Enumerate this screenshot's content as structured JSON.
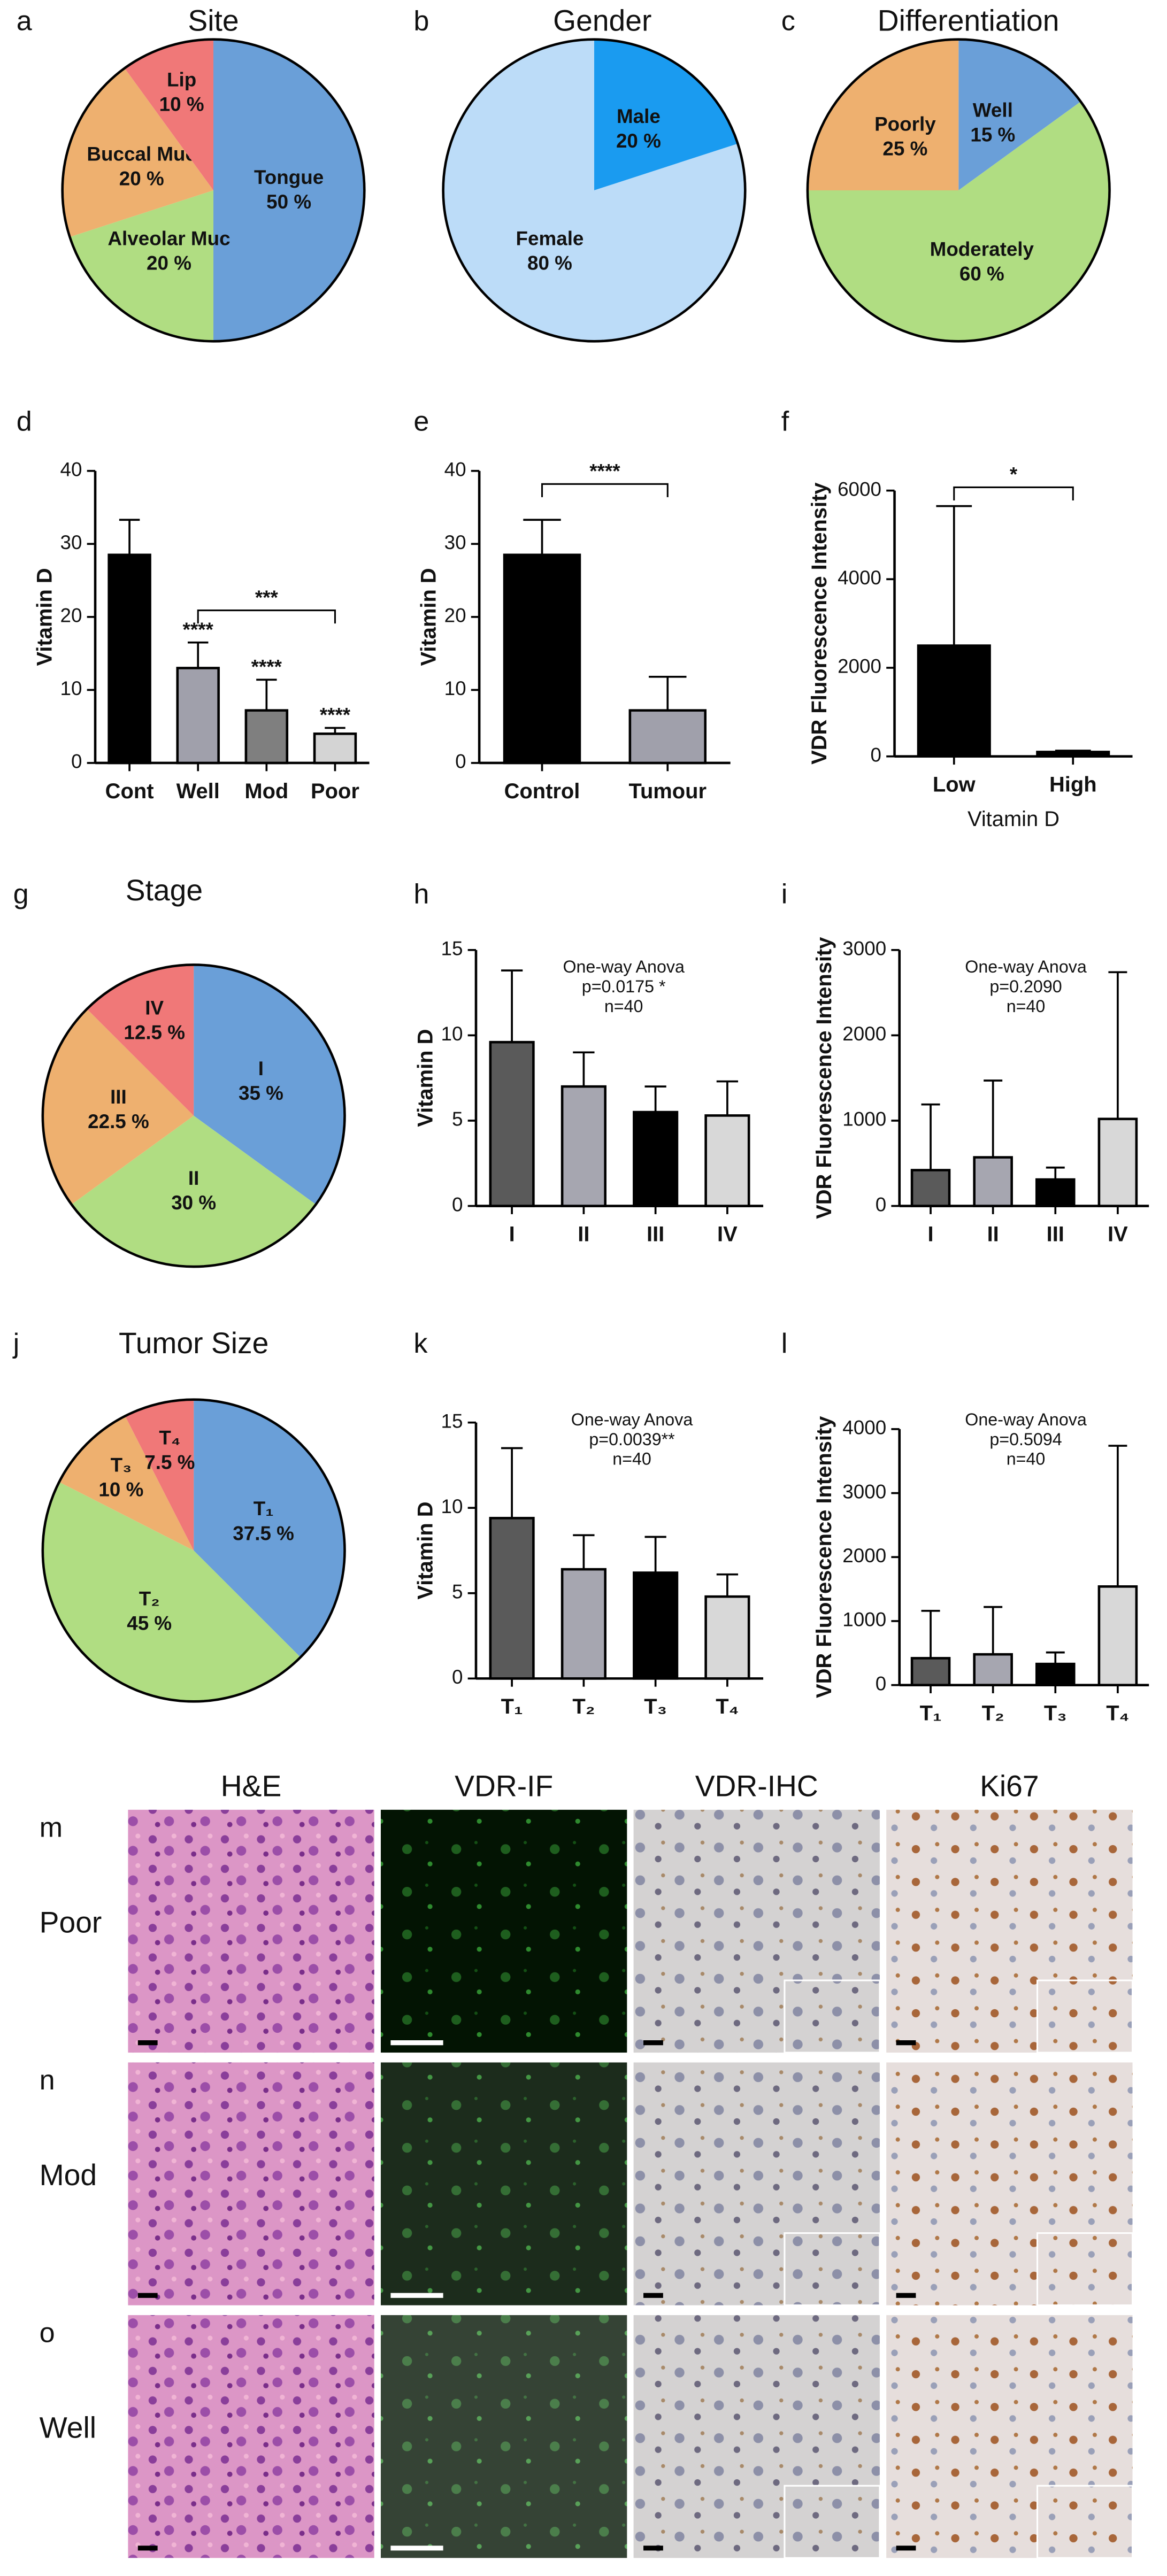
{
  "chart_data": [
    {
      "panel": "a",
      "type": "pie",
      "title": "Site",
      "categories": [
        "Tongue",
        "Alveolar Muc",
        "Buccal Muc",
        "Lip"
      ],
      "values": [
        50,
        20,
        20,
        10
      ],
      "value_labels": [
        "50 %",
        "20 %",
        "20 %",
        "10 %"
      ],
      "colors": [
        "#6a9fd8",
        "#b0dd82",
        "#eeb06f",
        "#f07878"
      ]
    },
    {
      "panel": "b",
      "type": "pie",
      "title": "Gender",
      "categories": [
        "Male",
        "Female"
      ],
      "values": [
        20,
        80
      ],
      "value_labels": [
        "20 %",
        "80 %"
      ],
      "colors": [
        "#1a9bf0",
        "#bcdcf8"
      ]
    },
    {
      "panel": "c",
      "type": "pie",
      "title": "Differentiation",
      "categories": [
        "Well",
        "Moderately",
        "Poorly"
      ],
      "values": [
        15,
        60,
        25
      ],
      "value_labels": [
        "15 %",
        "60 %",
        "25 %"
      ],
      "colors": [
        "#6a9fd8",
        "#b0dd82",
        "#eeb06f"
      ]
    },
    {
      "panel": "d",
      "type": "bar",
      "y_label": "Vitamin D",
      "categories": [
        "Cont",
        "Well",
        "Mod",
        "Poor"
      ],
      "values": [
        28.5,
        13,
        7.2,
        4
      ],
      "errors": [
        4.8,
        3.5,
        4.2,
        0.8
      ],
      "colors": [
        "#000000",
        "#a0a0ab",
        "#7f7f7f",
        "#d4d4d4"
      ],
      "ylim": [
        0,
        40
      ],
      "yticks": [
        0,
        10,
        20,
        30,
        40
      ],
      "stars": [
        null,
        "****",
        "****",
        "****"
      ],
      "bracket": {
        "from": 1,
        "to": 3,
        "label": "***"
      }
    },
    {
      "panel": "e",
      "type": "bar",
      "y_label": "Vitamin D",
      "categories": [
        "Control",
        "Tumour"
      ],
      "values": [
        28.5,
        7.2
      ],
      "errors": [
        4.8,
        4.6
      ],
      "colors": [
        "#000000",
        "#a0a0ab"
      ],
      "ylim": [
        0,
        40
      ],
      "yticks": [
        0,
        10,
        20,
        30,
        40
      ],
      "bracket": {
        "from": 0,
        "to": 1,
        "label": "****"
      }
    },
    {
      "panel": "f",
      "type": "bar",
      "y_label": "VDR Fluorescence Intensity",
      "x_label": "Vitamin D",
      "categories": [
        "Low",
        "High"
      ],
      "values": [
        2500,
        100
      ],
      "errors": [
        3150,
        30
      ],
      "colors": [
        "#000000",
        "#000000"
      ],
      "ylim": [
        0,
        6000
      ],
      "yticks": [
        0,
        2000,
        4000,
        6000
      ],
      "bracket": {
        "from": 0,
        "to": 1,
        "label": "*"
      }
    },
    {
      "panel": "g",
      "type": "pie",
      "title": "Stage",
      "categories": [
        "I",
        "II",
        "III",
        "IV"
      ],
      "values": [
        35,
        30,
        22.5,
        12.5
      ],
      "value_labels": [
        "35 %",
        "30 %",
        "22.5 %",
        "12.5 %"
      ],
      "colors": [
        "#6a9fd8",
        "#b0dd82",
        "#eeb06f",
        "#f07878"
      ]
    },
    {
      "panel": "h",
      "type": "bar",
      "y_label": "Vitamin D",
      "categories": [
        "I",
        "II",
        "III",
        "IV"
      ],
      "values": [
        9.6,
        7,
        5.5,
        5.3
      ],
      "errors": [
        4.2,
        2,
        1.5,
        2
      ],
      "colors": [
        "#5a5a5a",
        "#a6a6b0",
        "#000000",
        "#d8d8d8"
      ],
      "ylim": [
        0,
        15
      ],
      "yticks": [
        0,
        5,
        10,
        15
      ],
      "annotation": [
        "One-way Anova",
        "p=0.0175 *",
        "n=40"
      ]
    },
    {
      "panel": "i",
      "type": "bar",
      "y_label": "VDR Fluorescence Intensity",
      "categories": [
        "I",
        "II",
        "III",
        "IV"
      ],
      "values": [
        420,
        570,
        310,
        1020
      ],
      "errors": [
        770,
        900,
        140,
        1720
      ],
      "colors": [
        "#5a5a5a",
        "#a6a6b0",
        "#000000",
        "#d8d8d8"
      ],
      "ylim": [
        0,
        3000
      ],
      "yticks": [
        0,
        1000,
        2000,
        3000
      ],
      "annotation": [
        "One-way Anova",
        "p=0.2090",
        "n=40"
      ]
    },
    {
      "panel": "j",
      "type": "pie",
      "title": "Tumor Size",
      "categories": [
        "T₁",
        "T₂",
        "T₃",
        "T₄"
      ],
      "values": [
        37.5,
        45,
        10,
        7.5
      ],
      "value_labels": [
        "37.5 %",
        "45 %",
        "10 %",
        "7.5 %"
      ],
      "colors": [
        "#6a9fd8",
        "#b0dd82",
        "#eeb06f",
        "#f07878"
      ]
    },
    {
      "panel": "k",
      "type": "bar",
      "y_label": "Vitamin D",
      "categories": [
        "T₁",
        "T₂",
        "T₃",
        "T₄"
      ],
      "values": [
        9.4,
        6.4,
        6.2,
        4.8
      ],
      "errors": [
        4.1,
        2,
        2.1,
        1.3
      ],
      "colors": [
        "#5a5a5a",
        "#a6a6b0",
        "#000000",
        "#d8d8d8"
      ],
      "ylim": [
        0,
        15
      ],
      "yticks": [
        0,
        5,
        10,
        15
      ],
      "annotation": [
        "One-way Anova",
        "p=0.0039**",
        "n=40"
      ]
    },
    {
      "panel": "l",
      "type": "bar",
      "y_label": "VDR Fluorescence Intensity",
      "categories": [
        "T₁",
        "T₂",
        "T₃",
        "T₄"
      ],
      "values": [
        420,
        480,
        330,
        1540
      ],
      "errors": [
        740,
        740,
        180,
        2200
      ],
      "colors": [
        "#5a5a5a",
        "#a6a6b0",
        "#000000",
        "#d8d8d8"
      ],
      "ylim": [
        0,
        4000
      ],
      "yticks": [
        0,
        1000,
        2000,
        3000,
        4000
      ],
      "annotation": [
        "One-way Anova",
        "p=0.5094",
        "n=40"
      ]
    }
  ],
  "image_grid": {
    "columns": [
      "H&E",
      "VDR-IF",
      "VDR-IHC",
      "Ki67"
    ],
    "rows": [
      {
        "panel": "m",
        "label": "Poor"
      },
      {
        "panel": "n",
        "label": "Mod"
      },
      {
        "panel": "o",
        "label": "Well"
      }
    ]
  }
}
